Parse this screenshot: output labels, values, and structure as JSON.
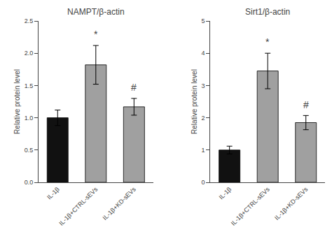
{
  "chart_data": [
    {
      "type": "bar",
      "title": "NAMPT/β-actin",
      "categories": [
        "IL-1β",
        "IL-1β+CTRL-sEVs",
        "IL-1β+KD-sEVs"
      ],
      "values": [
        1.0,
        1.82,
        1.17
      ],
      "errors": [
        0.12,
        0.3,
        0.13
      ],
      "colors": [
        "#111111",
        "#a0a0a0",
        "#a0a0a0"
      ],
      "ylabel": "Relative protein level",
      "ylim": [
        0,
        2.5
      ],
      "yticks": [
        {
          "value": 0.0,
          "label": "0.0"
        },
        0.5,
        {
          "value": 1.0,
          "label": "1.0"
        },
        1.5,
        {
          "value": 2.0,
          "label": "2.0"
        },
        2.5
      ],
      "annotations": [
        {
          "category": "IL-1β+CTRL-sEVs",
          "text": "*"
        },
        {
          "category": "IL-1β+KD-sEVs",
          "text": "#"
        }
      ],
      "grid": false
    },
    {
      "type": "bar",
      "title": "Sirt1/β-actin",
      "categories": [
        "IL-1β",
        "IL-1β+CTRL-sEVs",
        "IL-1β+KD-sEVs"
      ],
      "values": [
        1.0,
        3.45,
        1.85
      ],
      "errors": [
        0.12,
        0.55,
        0.22
      ],
      "colors": [
        "#111111",
        "#a0a0a0",
        "#a0a0a0"
      ],
      "ylabel": "Relative protein level",
      "ylim": [
        0,
        5
      ],
      "yticks": [
        0,
        1,
        2,
        3,
        4,
        5
      ],
      "annotations": [
        {
          "category": "IL-1β+CTRL-sEVs",
          "text": "*"
        },
        {
          "category": "IL-1β+KD-sEVs",
          "text": "#"
        }
      ],
      "grid": false
    }
  ]
}
